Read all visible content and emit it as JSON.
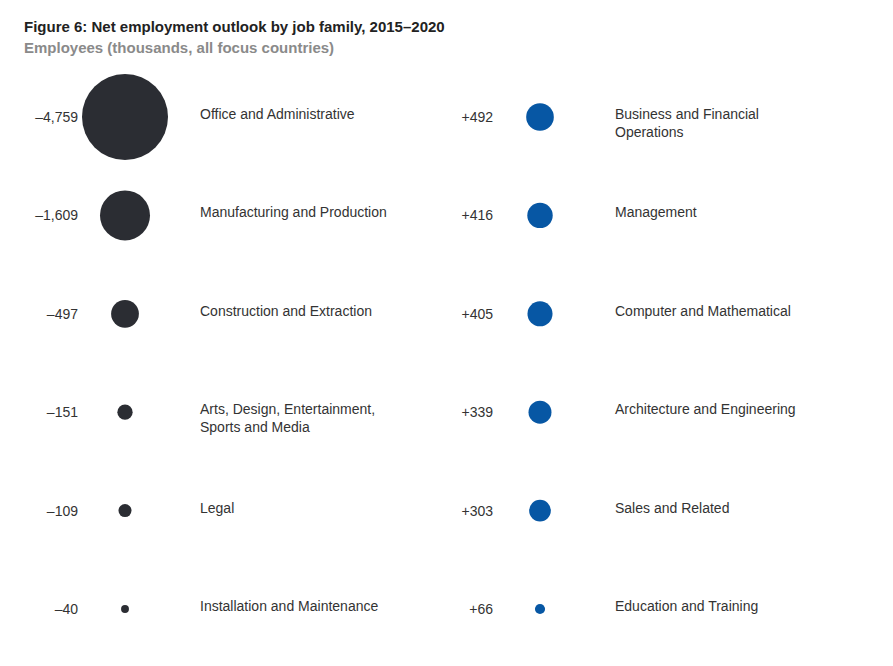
{
  "chart_data": {
    "type": "bubble",
    "title": "Figure 6: Net employment outlook by job family, 2015–2020",
    "subtitle": "Employees (thousands, all focus countries)",
    "categories": [
      "Office and Administrative",
      "Manufacturing and Production",
      "Construction and Extraction",
      "Arts, Design, Entertainment, Sports and Media",
      "Legal",
      "Installation and Maintenance",
      "Business and Financial Operations",
      "Management",
      "Computer and Mathematical",
      "Architecture and Engineering",
      "Sales and Related",
      "Education and Training"
    ],
    "values": [
      -4759,
      -1609,
      -497,
      -151,
      -109,
      -40,
      492,
      416,
      405,
      339,
      303,
      66
    ],
    "value_labels": [
      "–4,759",
      "–1,609",
      "–497",
      "–151",
      "–109",
      "–40",
      "+492",
      "+416",
      "+405",
      "+339",
      "+303",
      "+66"
    ],
    "colors": [
      "#2b2d33",
      "#2b2d33",
      "#2b2d33",
      "#2b2d33",
      "#2b2d33",
      "#2b2d33",
      "#0757a4",
      "#0757a4",
      "#0757a4",
      "#0757a4",
      "#0757a4",
      "#0757a4"
    ],
    "tick_labels": false,
    "grid": false
  }
}
